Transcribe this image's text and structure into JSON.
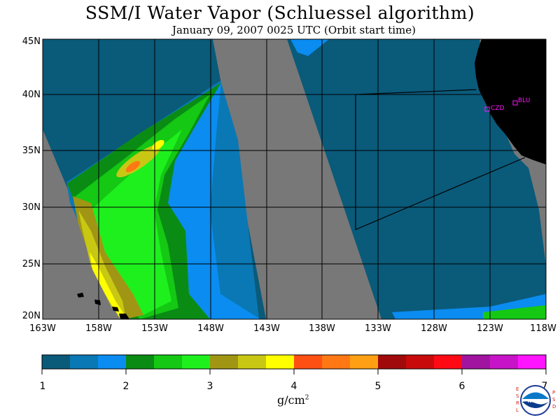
{
  "title": "SSM/I Water Vapor (Schluessel algorithm)",
  "subtitle": "January 09, 2007  0025 UTC  (Orbit start time)",
  "lat_labels": [
    "45N",
    "40N",
    "35N",
    "30N",
    "25N",
    "20N"
  ],
  "lon_labels": [
    "163W",
    "158W",
    "153W",
    "148W",
    "143W",
    "138W",
    "133W",
    "128W",
    "123W",
    "118W"
  ],
  "colorbar": {
    "colors": [
      "#0a5a7a",
      "#0a78b4",
      "#0a8cf0",
      "#0a8c14",
      "#14c814",
      "#1ef01e",
      "#a09614",
      "#c8c814",
      "#ffff00",
      "#ff5014",
      "#ff7814",
      "#ffa014",
      "#a00a0a",
      "#c80a0a",
      "#ff0a14",
      "#a014a0",
      "#c814c8",
      "#ff14ff"
    ],
    "tick_labels": [
      "1",
      "2",
      "3",
      "4",
      "5",
      "6",
      "7"
    ],
    "unit": "g/cm",
    "unit_exp": "2"
  },
  "stations": [
    {
      "label": "CZD"
    },
    {
      "label": "BLU"
    }
  ],
  "logo": {
    "left_letters": [
      "E",
      "S",
      "R",
      "L"
    ],
    "right_letters": [
      "P",
      "S",
      "D"
    ],
    "center": "NOAA"
  },
  "colors": {
    "no_data": "#787878",
    "land": "#000000",
    "station": "#ff14ff",
    "grid": "#000000"
  }
}
